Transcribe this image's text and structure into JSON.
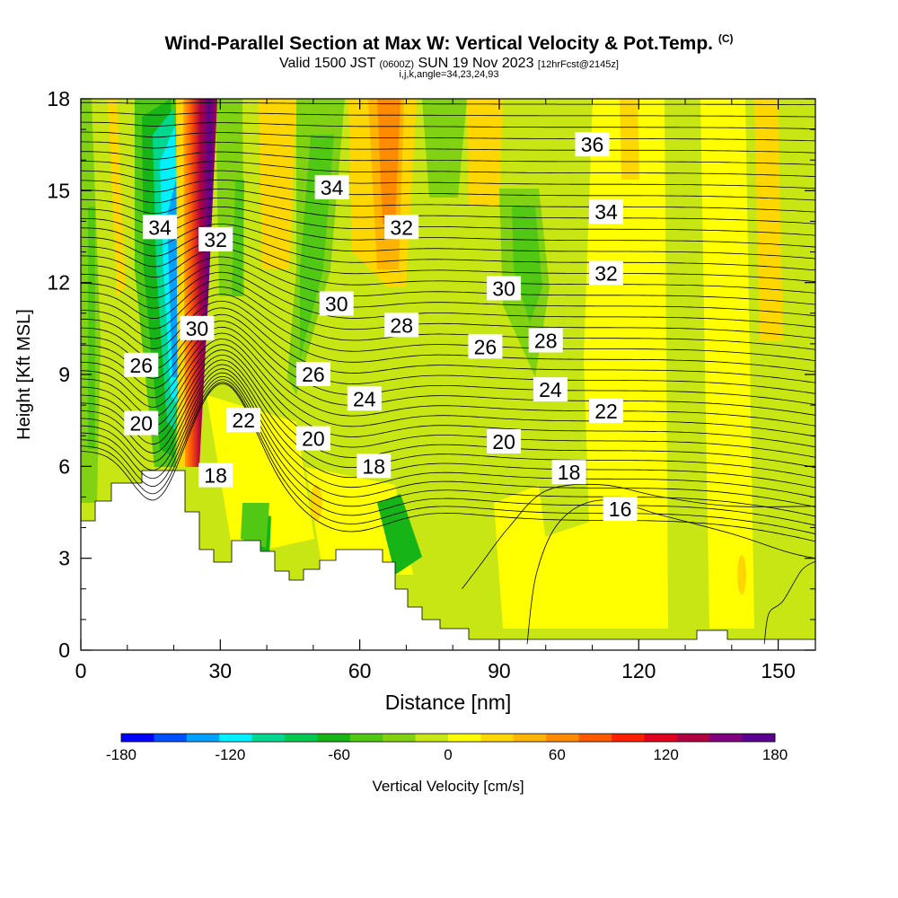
{
  "title": {
    "main": "Wind-Parallel Section at Max W: Vertical Velocity & Pot.Temp.",
    "copyright": "(C)",
    "valid_prefix": "Valid 1500 JST",
    "valid_utc": "(0600Z)",
    "valid_date": "SUN 19 Nov 2023",
    "forecast_info": "[12hrFcst@2145z]",
    "indices": "i,j,k,angle=34,23,24,93"
  },
  "chart_data": {
    "type": "heatmap",
    "xlabel": "Distance [nm]",
    "ylabel": "Height [Kft MSL]",
    "xlim": [
      0,
      158
    ],
    "ylim": [
      0,
      18
    ],
    "x_ticks": [
      "0",
      "30",
      "60",
      "90",
      "120",
      "150"
    ],
    "y_ticks": [
      "0",
      "3",
      "6",
      "9",
      "12",
      "15",
      "18"
    ],
    "colorbar": {
      "label": "Vertical Velocity [cm/s]",
      "range": [
        -180,
        180
      ],
      "tick_labels": [
        "-180",
        "-120",
        "-60",
        "0",
        "60",
        "120",
        "180"
      ],
      "colors": [
        "#0000ff",
        "#0050ff",
        "#00a0ff",
        "#00f0ff",
        "#00d890",
        "#00c850",
        "#16b416",
        "#50c814",
        "#82d214",
        "#c8e614",
        "#ffff00",
        "#ffd700",
        "#ffb400",
        "#ff8c00",
        "#ff5a00",
        "#ff2000",
        "#e00020",
        "#b00040",
        "#800080",
        "#5a0090"
      ]
    },
    "theta_contour_labels": [
      {
        "v": "34",
        "x": 17,
        "y": 13.8
      },
      {
        "v": "32",
        "x": 29,
        "y": 13.4
      },
      {
        "v": "30",
        "x": 25,
        "y": 10.5
      },
      {
        "v": "26",
        "x": 13,
        "y": 9.3
      },
      {
        "v": "20",
        "x": 13,
        "y": 7.4
      },
      {
        "v": "18",
        "x": 29,
        "y": 5.7
      },
      {
        "v": "22",
        "x": 35,
        "y": 7.5
      },
      {
        "v": "34",
        "x": 54,
        "y": 15.1
      },
      {
        "v": "32",
        "x": 69,
        "y": 13.8
      },
      {
        "v": "30",
        "x": 55,
        "y": 11.3
      },
      {
        "v": "28",
        "x": 69,
        "y": 10.6
      },
      {
        "v": "26",
        "x": 50,
        "y": 9.0
      },
      {
        "v": "24",
        "x": 61,
        "y": 8.2
      },
      {
        "v": "20",
        "x": 50,
        "y": 6.9
      },
      {
        "v": "18",
        "x": 63,
        "y": 6.0
      },
      {
        "v": "36",
        "x": 110,
        "y": 16.5
      },
      {
        "v": "34",
        "x": 113,
        "y": 14.3
      },
      {
        "v": "32",
        "x": 113,
        "y": 12.3
      },
      {
        "v": "30",
        "x": 91,
        "y": 11.8
      },
      {
        "v": "28",
        "x": 100,
        "y": 10.1
      },
      {
        "v": "26",
        "x": 87,
        "y": 9.9
      },
      {
        "v": "24",
        "x": 101,
        "y": 8.5
      },
      {
        "v": "22",
        "x": 113,
        "y": 7.8
      },
      {
        "v": "20",
        "x": 91,
        "y": 6.8
      },
      {
        "v": "18",
        "x": 105,
        "y": 5.8
      },
      {
        "v": "16",
        "x": 116,
        "y": 4.6
      }
    ],
    "grid": false
  }
}
